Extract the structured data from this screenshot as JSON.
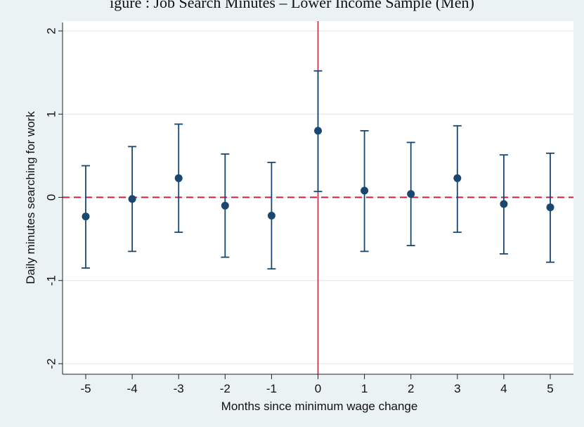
{
  "caption": "igure    : Job Search Minutes – Lower Income Sample (Men)",
  "chart_data": {
    "type": "scatter",
    "title": "",
    "xlabel": "Months since minimum wage change",
    "ylabel": "Daily minutes searching for work",
    "x": [
      -5,
      -4,
      -3,
      -2,
      -1,
      0,
      1,
      2,
      3,
      4,
      5
    ],
    "values": [
      -0.23,
      -0.02,
      0.23,
      -0.1,
      -0.22,
      0.8,
      0.08,
      0.04,
      0.23,
      -0.08,
      -0.12
    ],
    "ci_lower": [
      -0.85,
      -0.65,
      -0.42,
      -0.72,
      -0.86,
      0.07,
      -0.65,
      -0.58,
      -0.42,
      -0.68,
      -0.78
    ],
    "ci_upper": [
      0.38,
      0.61,
      0.88,
      0.52,
      0.42,
      1.52,
      0.8,
      0.66,
      0.86,
      0.51,
      0.53
    ],
    "xticks": [
      "-5",
      "-4",
      "-3",
      "-2",
      "-1",
      "0",
      "1",
      "2",
      "3",
      "4",
      "5"
    ],
    "yticks": [
      "2",
      "1",
      "0",
      "-1",
      "-2"
    ],
    "xlim": [
      -5.5,
      5.5
    ],
    "ylim": [
      -2.1,
      2.1
    ],
    "grid": "horizontal",
    "reference_lines": {
      "horizontal_y": 0,
      "vertical_x": 0
    },
    "colors": {
      "marker": "#1a476f",
      "errorbar": "#1a476f",
      "hline": "#c3223c",
      "vline": "#c3223c",
      "plot_bg": "#ffffff",
      "grid": "#e3ecee"
    }
  }
}
